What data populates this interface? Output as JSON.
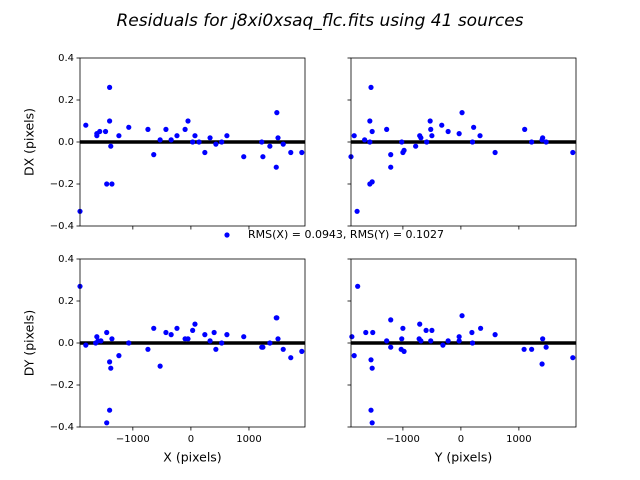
{
  "title": "Residuals for j8xi0xsaq_flc.fits using 41 sources",
  "legend": {
    "label": "RMS(X) = 0.0943, RMS(Y) = 0.1027",
    "color": "#0000ff"
  },
  "chart_data": [
    {
      "type": "scatter",
      "ylabel": "DX (pixels)",
      "color": "#0000ff",
      "hline": 0,
      "xlim": [
        -1910,
        1965
      ],
      "ylim": [
        -0.4,
        0.4
      ],
      "xticks": [
        {
          "value": -1000,
          "label": "−1000"
        },
        0,
        1000
      ],
      "yticks": [
        {
          "value": -0.4,
          "label": "−0.4"
        },
        {
          "value": -0.2,
          "label": "−0.2"
        },
        {
          "value": 0,
          "label": "0.0"
        },
        0.2,
        0.4
      ],
      "show_xtick_labels": false,
      "show_ytick_labels": true,
      "x": [
        -1910,
        -1810,
        -1620,
        -1620,
        -1570,
        -1470,
        -1400,
        -1400,
        -1380,
        -1450,
        -1360,
        -1240,
        -1070,
        -740,
        -640,
        -530,
        -430,
        -340,
        -240,
        -100,
        -50,
        30,
        70,
        140,
        240,
        330,
        430,
        530,
        620,
        910,
        1220,
        1240,
        1360,
        1480,
        1500,
        1470,
        1590,
        1720,
        1910
      ],
      "values": [
        -0.33,
        0.08,
        0.04,
        0.03,
        0.05,
        0.05,
        0.26,
        0.1,
        -0.02,
        -0.2,
        -0.2,
        0.03,
        0.07,
        0.06,
        -0.06,
        0.01,
        0.06,
        0.01,
        0.03,
        0.06,
        0.1,
        0.0,
        0.03,
        0.0,
        -0.05,
        0.02,
        -0.01,
        0.0,
        0.03,
        -0.07,
        0.0,
        -0.07,
        -0.02,
        0.14,
        0.02,
        -0.12,
        -0.01,
        -0.05,
        -0.05
      ]
    },
    {
      "type": "scatter",
      "color": "#0000ff",
      "hline": 0,
      "xlim": [
        -1895,
        1985
      ],
      "ylim": [
        -0.4,
        0.4
      ],
      "xticks": [
        {
          "value": -1000,
          "label": "−1000"
        },
        0,
        1000
      ],
      "yticks": [
        {
          "value": -0.4,
          "label": "−0.4"
        },
        {
          "value": -0.2,
          "label": "−0.2"
        },
        {
          "value": 0,
          "label": "0.0"
        },
        0.2,
        0.4
      ],
      "show_xtick_labels": false,
      "show_ytick_labels": false,
      "x": [
        -1895,
        -1840,
        -1790,
        -1660,
        -1550,
        -1570,
        -1570,
        -1530,
        -1570,
        -1530,
        -1280,
        -1210,
        -1210,
        -1020,
        -1000,
        -980,
        -780,
        -710,
        -690,
        -590,
        -530,
        -520,
        -500,
        -330,
        -220,
        -30,
        20,
        220,
        200,
        330,
        590,
        1100,
        1220,
        1400,
        1410,
        1470,
        1930
      ],
      "values": [
        -0.07,
        0.03,
        -0.33,
        0.01,
        0.26,
        0.1,
        0.0,
        0.05,
        -0.2,
        -0.19,
        0.06,
        -0.06,
        -0.12,
        0.0,
        -0.05,
        -0.04,
        -0.02,
        0.03,
        0.02,
        0.0,
        0.1,
        0.06,
        0.03,
        0.08,
        0.05,
        0.04,
        0.14,
        0.07,
        0.0,
        0.03,
        -0.05,
        0.06,
        0.0,
        0.01,
        0.02,
        0.0,
        -0.05
      ]
    },
    {
      "type": "scatter",
      "xlabel": "X (pixels)",
      "ylabel": "DY (pixels)",
      "color": "#0000ff",
      "hline": 0,
      "xlim": [
        -1910,
        1965
      ],
      "ylim": [
        -0.4,
        0.4
      ],
      "xticks": [
        {
          "value": -1000,
          "label": "−1000"
        },
        0,
        1000
      ],
      "yticks": [
        {
          "value": -0.4,
          "label": "−0.4"
        },
        {
          "value": -0.2,
          "label": "−0.2"
        },
        {
          "value": 0,
          "label": "0.0"
        },
        0.2,
        0.4
      ],
      "show_xtick_labels": true,
      "show_ytick_labels": true,
      "x": [
        -1910,
        -1810,
        -1640,
        -1620,
        -1600,
        -1550,
        -1450,
        -1400,
        -1380,
        -1400,
        -1450,
        -1360,
        -1240,
        -1070,
        -740,
        -640,
        -530,
        -430,
        -340,
        -240,
        -100,
        -50,
        30,
        70,
        240,
        330,
        400,
        430,
        530,
        620,
        910,
        1220,
        1240,
        1360,
        1470,
        1480,
        1500,
        1590,
        1720,
        1910
      ],
      "values": [
        0.27,
        -0.01,
        0.0,
        0.03,
        0.01,
        0.01,
        0.05,
        -0.09,
        -0.12,
        -0.32,
        -0.38,
        0.02,
        -0.06,
        0.0,
        -0.03,
        0.07,
        -0.11,
        0.05,
        0.04,
        0.07,
        0.02,
        0.02,
        0.06,
        0.09,
        0.04,
        0.01,
        0.05,
        -0.03,
        0.0,
        0.04,
        0.03,
        -0.02,
        -0.02,
        0.0,
        0.12,
        0.12,
        0.02,
        -0.03,
        -0.07,
        -0.04
      ]
    },
    {
      "type": "scatter",
      "xlabel": "Y (pixels)",
      "color": "#0000ff",
      "hline": 0,
      "xlim": [
        -1895,
        1985
      ],
      "ylim": [
        -0.4,
        0.4
      ],
      "xticks": [
        {
          "value": -1000,
          "label": "−1000"
        },
        0,
        1000
      ],
      "yticks": [
        {
          "value": -0.4,
          "label": "−0.4"
        },
        {
          "value": -0.2,
          "label": "−0.2"
        },
        {
          "value": 0,
          "label": "0.0"
        },
        0.2,
        0.4
      ],
      "show_xtick_labels": true,
      "show_ytick_labels": false,
      "x": [
        -1880,
        -1840,
        -1780,
        -1640,
        -1550,
        -1530,
        -1520,
        -1550,
        -1530,
        -1280,
        -1210,
        -1210,
        -1020,
        -1030,
        -980,
        -1000,
        -720,
        -710,
        -690,
        -600,
        -500,
        -520,
        -310,
        -220,
        -30,
        -30,
        20,
        190,
        200,
        340,
        590,
        1090,
        1220,
        1400,
        1410,
        1470,
        1930
      ],
      "values": [
        0.03,
        -0.06,
        0.27,
        0.05,
        -0.08,
        -0.12,
        0.05,
        -0.32,
        -0.38,
        0.01,
        0.11,
        -0.02,
        0.02,
        -0.03,
        -0.04,
        0.07,
        0.02,
        0.09,
        0.01,
        0.06,
        0.06,
        0.01,
        -0.01,
        0.01,
        0.03,
        0.01,
        0.13,
        0.05,
        0.0,
        0.07,
        0.04,
        -0.03,
        -0.03,
        -0.1,
        0.02,
        -0.02,
        -0.07
      ]
    }
  ]
}
